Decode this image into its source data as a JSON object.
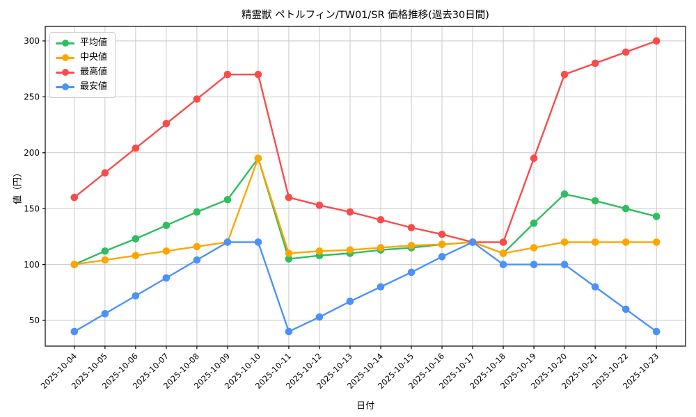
{
  "title": "精霊獣 ペトルフィン/TW01/SR 価格推移(過去30日間)",
  "colors": {
    "background": "#FFFFFF",
    "grid": "#C9C9C9",
    "axis": "#000000",
    "tick_text": "#000000"
  },
  "chart_data": {
    "type": "line",
    "title": "精霊獣 ペトルフィン/TW01/SR 価格推移(過去30日間)",
    "xlabel": "日付",
    "ylabel": "値（円）",
    "x": [
      "2025-10-04",
      "2025-10-05",
      "2025-10-06",
      "2025-10-07",
      "2025-10-08",
      "2025-10-09",
      "2025-10-10",
      "2025-10-11",
      "2025-10-12",
      "2025-10-13",
      "2025-10-14",
      "2025-10-15",
      "2025-10-16",
      "2025-10-17",
      "2025-10-18",
      "2025-10-19",
      "2025-10-20",
      "2025-10-21",
      "2025-10-22",
      "2025-10-23"
    ],
    "series": [
      {
        "key": "avg",
        "name": "平均値",
        "color": "#2DBE5F",
        "values": [
          100,
          112,
          123,
          135,
          147,
          158,
          195,
          105,
          108,
          110,
          113,
          115,
          118,
          120,
          110,
          137,
          163,
          157,
          150,
          143
        ]
      },
      {
        "key": "median",
        "name": "中央値",
        "color": "#FFA502",
        "values": [
          100,
          104,
          108,
          112,
          116,
          120,
          195,
          110,
          112,
          113,
          115,
          117,
          118,
          120,
          110,
          115,
          120,
          120,
          120,
          120
        ]
      },
      {
        "key": "high",
        "name": "最高値",
        "color": "#FA4B4B",
        "values": [
          160,
          182,
          204,
          226,
          248,
          270,
          270,
          160,
          153,
          147,
          140,
          133,
          127,
          120,
          120,
          195,
          270,
          280,
          290,
          300
        ]
      },
      {
        "key": "low",
        "name": "最安値",
        "color": "#4B91FA",
        "values": [
          40,
          56,
          72,
          88,
          104,
          120,
          120,
          40,
          53,
          67,
          80,
          93,
          107,
          120,
          100,
          100,
          100,
          80,
          60,
          40
        ]
      }
    ],
    "yticks": [
      50,
      100,
      150,
      200,
      250,
      300
    ],
    "ylim": [
      27,
      313
    ],
    "grid": true,
    "legend_position": "upper-left",
    "marker": "circle"
  }
}
